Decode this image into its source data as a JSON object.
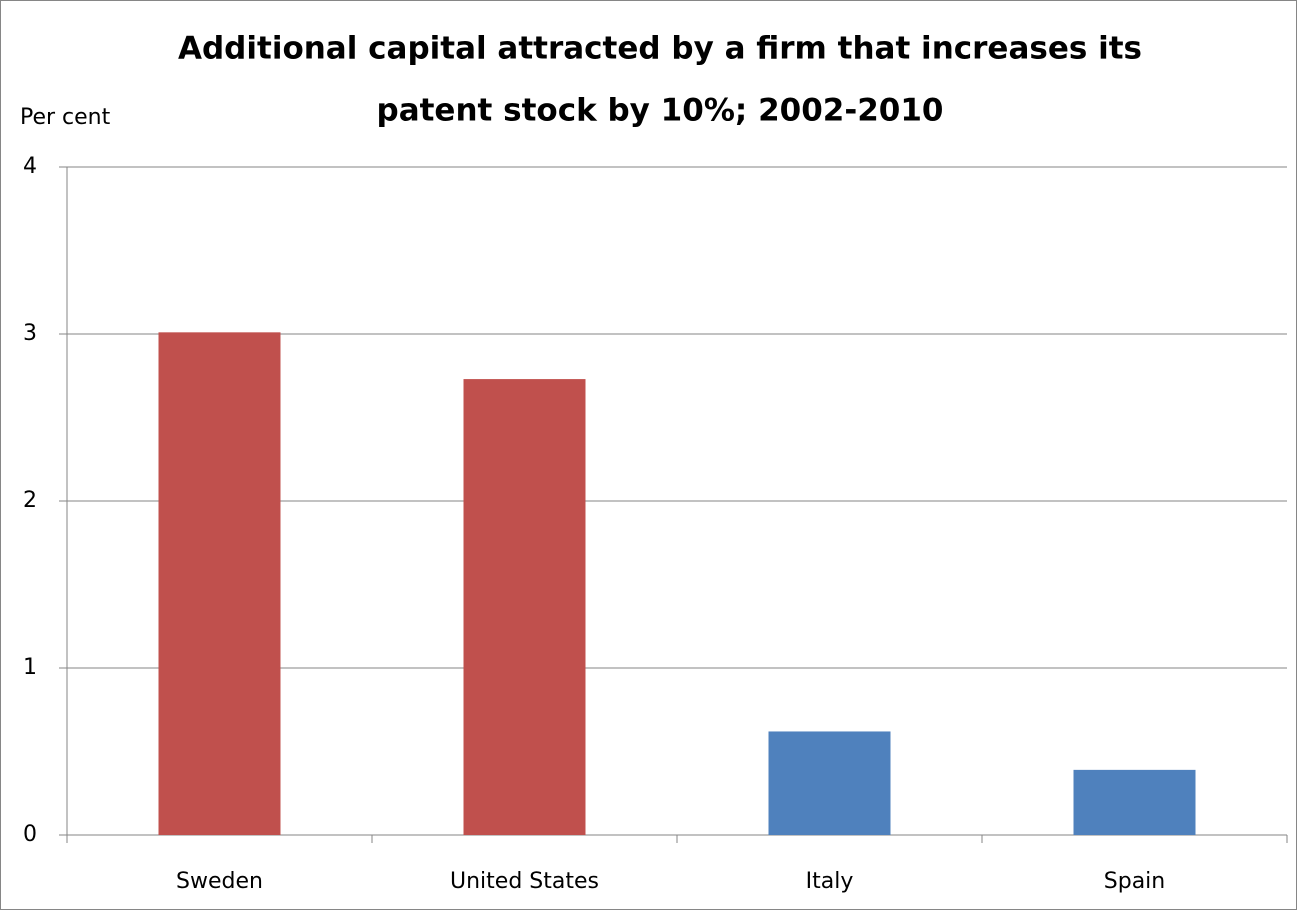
{
  "chart_data": {
    "type": "bar",
    "title": [
      "Additional capital attracted by a firm that increases its",
      "patent stock by 10%; 2002-2010"
    ],
    "y_label": "Per cent",
    "categories": [
      "Sweden",
      "United States",
      "Italy",
      "Spain"
    ],
    "values": [
      3.01,
      2.73,
      0.62,
      0.39
    ],
    "colors": [
      "#c0504d",
      "#c0504d",
      "#4f81bd",
      "#4f81bd"
    ],
    "ylim": [
      0,
      4
    ],
    "yticks": [
      0,
      1,
      2,
      3,
      4
    ],
    "grid": true
  }
}
